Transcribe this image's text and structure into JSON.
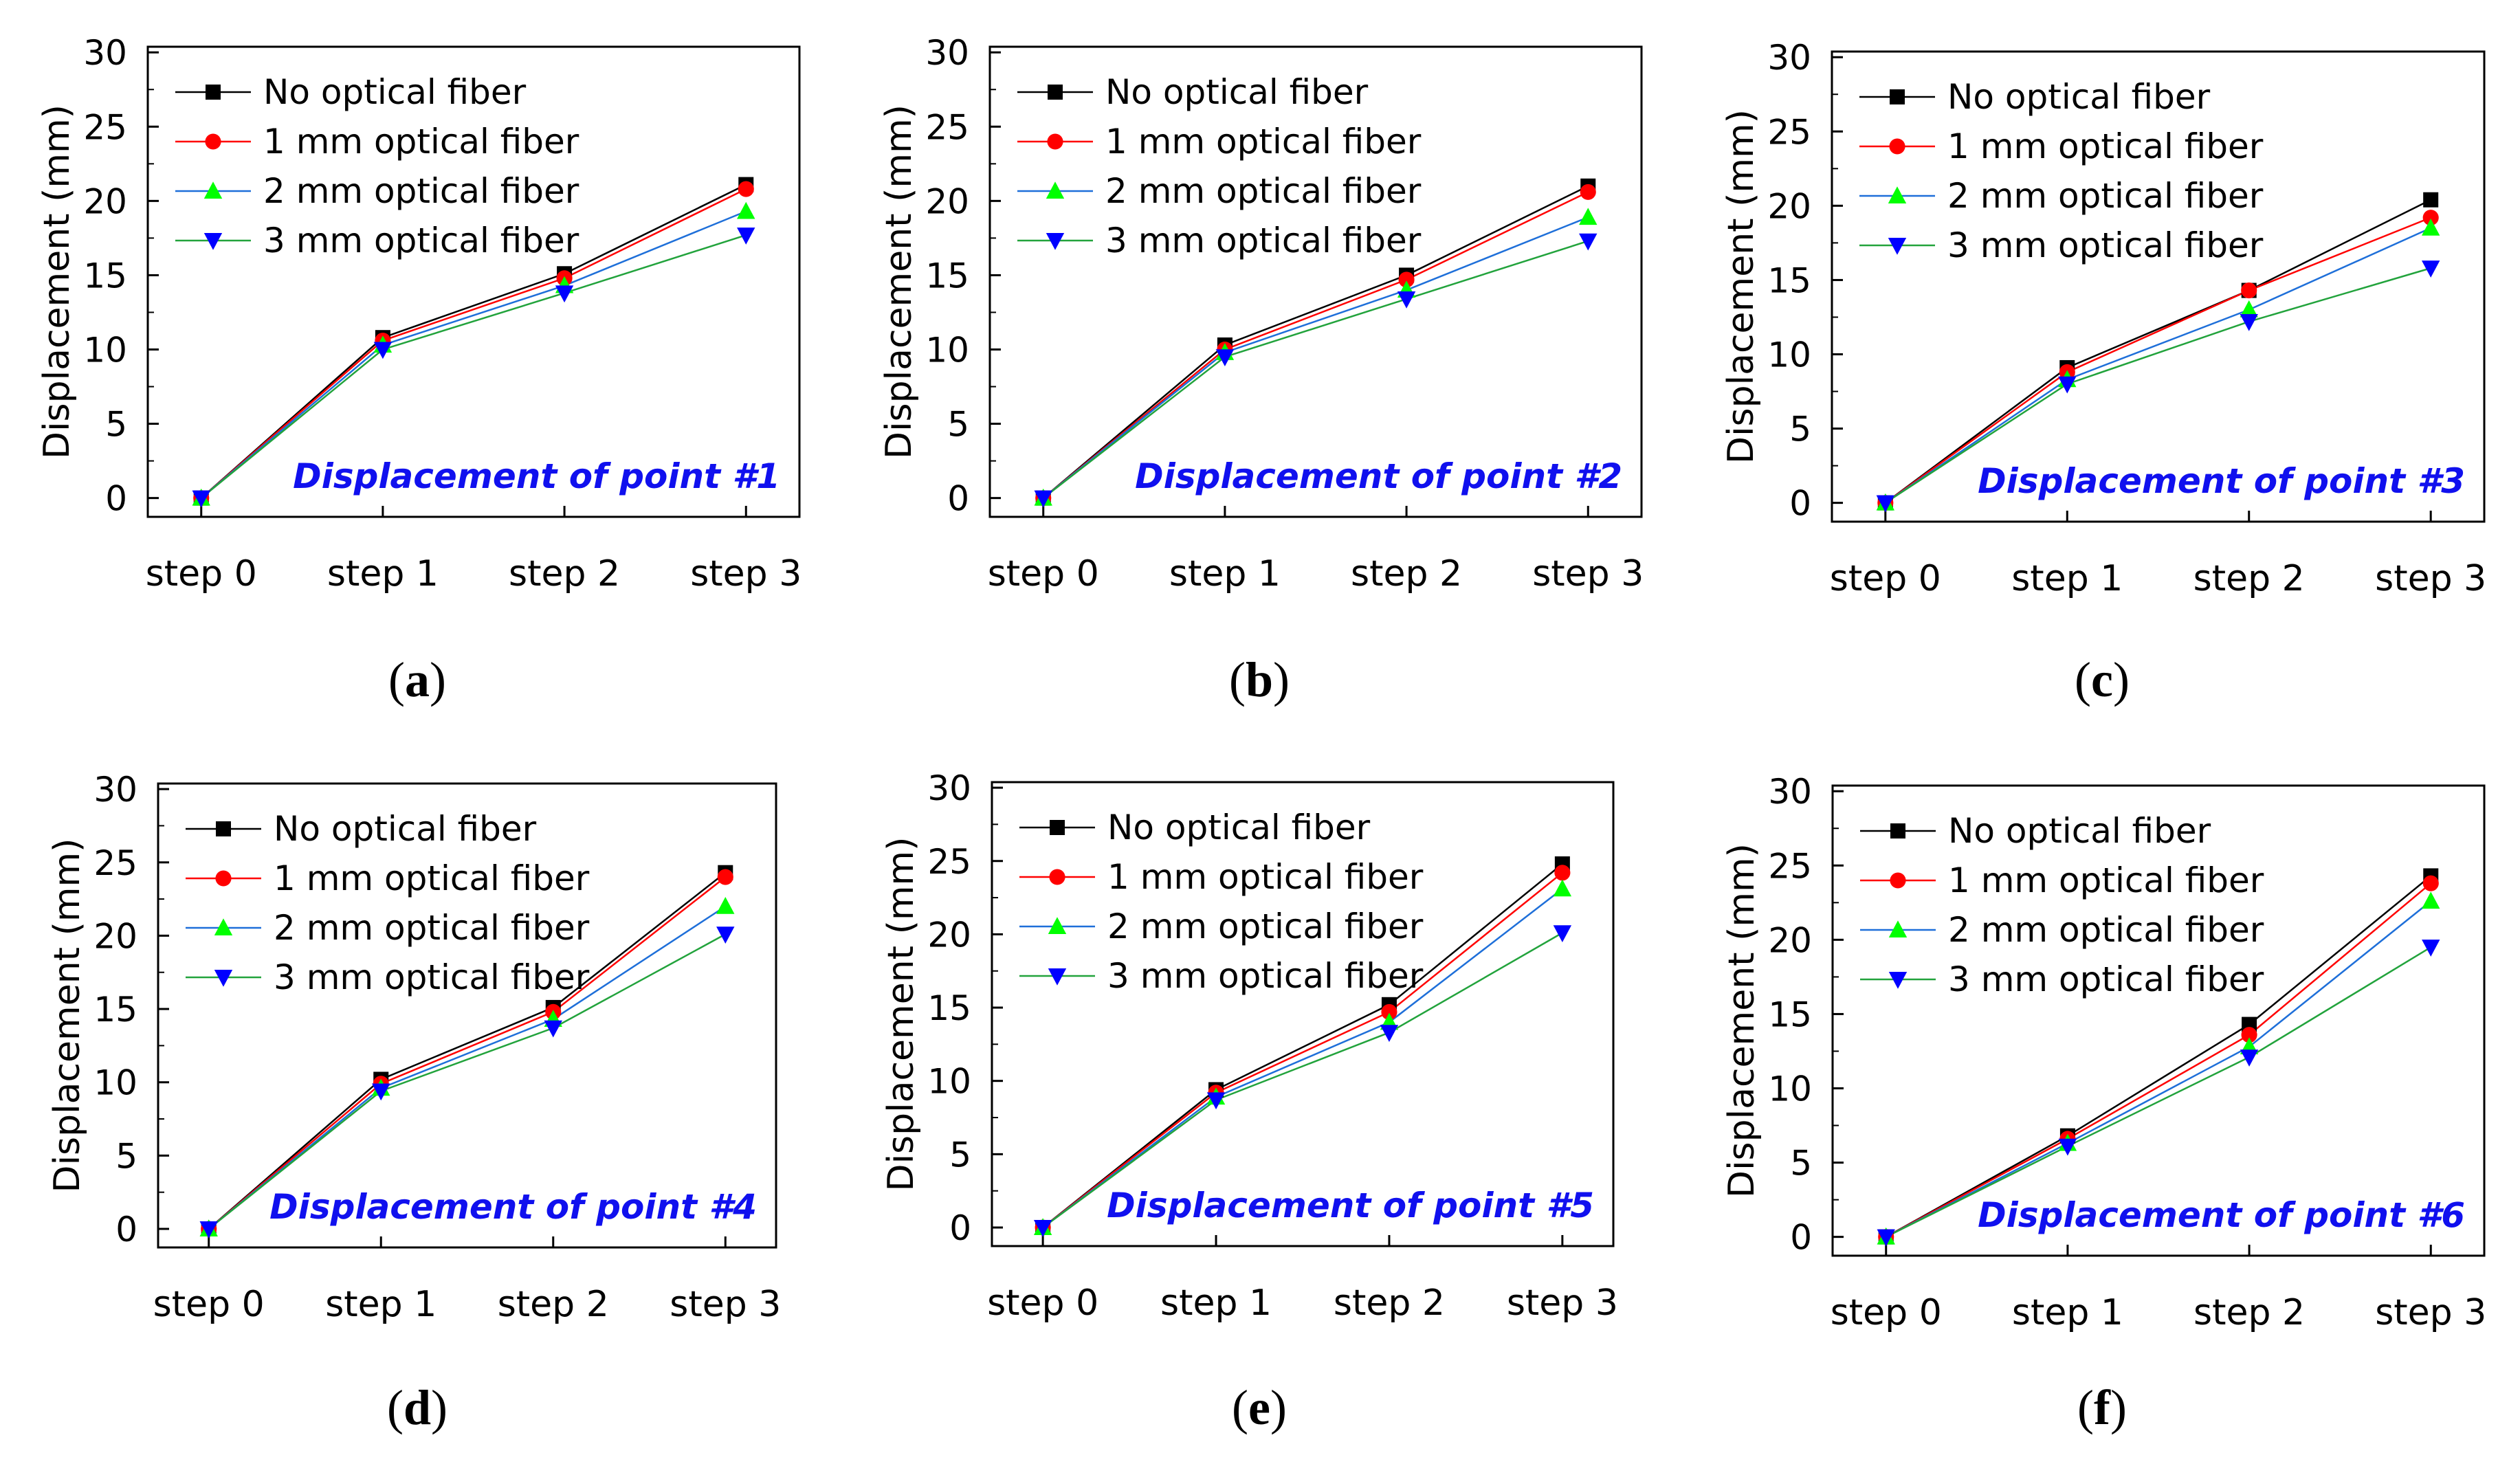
{
  "figure": {
    "panels": [
      {
        "caption": "a",
        "annotation": "Displacement of point #1"
      },
      {
        "caption": "b",
        "annotation": "Displacement of point #2"
      },
      {
        "caption": "c",
        "annotation": "Displacement of point #3"
      },
      {
        "caption": "d",
        "annotation": "Displacement of point #4"
      },
      {
        "caption": "e",
        "annotation": "Displacement of point #5"
      },
      {
        "caption": "f",
        "annotation": "Displacement of point #6"
      }
    ]
  },
  "series_styles": [
    {
      "name": "No optical fiber",
      "color": "#000000",
      "marker": "square"
    },
    {
      "name": "1 mm optical fiber",
      "color": "#ff0000",
      "marker": "circle"
    },
    {
      "name": "2 mm optical fiber",
      "color": "#00ff00",
      "line_color": "#1e6fd9",
      "marker": "triangle-up"
    },
    {
      "name": "3 mm optical fiber",
      "color": "#0000ff",
      "line_color": "#22a33c",
      "marker": "triangle-down"
    }
  ],
  "chart_data": [
    {
      "type": "line",
      "title": "Displacement of point #1",
      "xlabel": "",
      "ylabel": "Displacement (mm)",
      "categories": [
        "step 0",
        "step 1",
        "step 2",
        "step 3"
      ],
      "ylim": [
        0,
        30
      ],
      "yticks": [
        0,
        5,
        10,
        15,
        20,
        25,
        30
      ],
      "legend": "top-left",
      "series": [
        {
          "name": "No optical fiber",
          "values": [
            0,
            10.8,
            15.1,
            21.1
          ]
        },
        {
          "name": "1 mm optical fiber",
          "values": [
            0,
            10.6,
            14.8,
            20.8
          ]
        },
        {
          "name": "2 mm optical fiber",
          "values": [
            0,
            10.3,
            14.3,
            19.3
          ]
        },
        {
          "name": "3 mm optical fiber",
          "values": [
            0,
            10.0,
            13.8,
            17.7
          ]
        }
      ]
    },
    {
      "type": "line",
      "title": "Displacement of point #2",
      "xlabel": "",
      "ylabel": "Displacement (mm)",
      "categories": [
        "step 0",
        "step 1",
        "step 2",
        "step 3"
      ],
      "ylim": [
        0,
        30
      ],
      "yticks": [
        0,
        5,
        10,
        15,
        20,
        25,
        30
      ],
      "legend": "top-left",
      "series": [
        {
          "name": "No optical fiber",
          "values": [
            0,
            10.3,
            15.0,
            21.0
          ]
        },
        {
          "name": "1 mm optical fiber",
          "values": [
            0,
            10.0,
            14.7,
            20.6
          ]
        },
        {
          "name": "2 mm optical fiber",
          "values": [
            0,
            9.8,
            14.0,
            18.9
          ]
        },
        {
          "name": "3 mm optical fiber",
          "values": [
            0,
            9.5,
            13.4,
            17.3
          ]
        }
      ]
    },
    {
      "type": "line",
      "title": "Displacement of point #3",
      "xlabel": "",
      "ylabel": "Displacement (mm)",
      "categories": [
        "step 0",
        "step 1",
        "step 2",
        "step 3"
      ],
      "ylim": [
        0,
        30
      ],
      "yticks": [
        0,
        5,
        10,
        15,
        20,
        25,
        30
      ],
      "legend": "top-left",
      "series": [
        {
          "name": "No optical fiber",
          "values": [
            0,
            9.1,
            14.3,
            20.4
          ]
        },
        {
          "name": "1 mm optical fiber",
          "values": [
            0,
            8.8,
            14.3,
            19.2
          ]
        },
        {
          "name": "2 mm optical fiber",
          "values": [
            0,
            8.3,
            13.0,
            18.5
          ]
        },
        {
          "name": "3 mm optical fiber",
          "values": [
            0,
            8.0,
            12.2,
            15.8
          ]
        }
      ]
    },
    {
      "type": "line",
      "title": "Displacement of point #4",
      "xlabel": "",
      "ylabel": "Displacement (mm)",
      "categories": [
        "step 0",
        "step 1",
        "step 2",
        "step 3"
      ],
      "ylim": [
        0,
        30
      ],
      "yticks": [
        0,
        5,
        10,
        15,
        20,
        25,
        30
      ],
      "legend": "top-left",
      "series": [
        {
          "name": "No optical fiber",
          "values": [
            0,
            10.2,
            15.1,
            24.3
          ]
        },
        {
          "name": "1 mm optical fiber",
          "values": [
            0,
            9.9,
            14.8,
            24.0
          ]
        },
        {
          "name": "2 mm optical fiber",
          "values": [
            0,
            9.6,
            14.3,
            22.0
          ]
        },
        {
          "name": "3 mm optical fiber",
          "values": [
            0,
            9.4,
            13.7,
            20.1
          ]
        }
      ]
    },
    {
      "type": "line",
      "title": "Displacement of point #5",
      "xlabel": "",
      "ylabel": "Displacement (mm)",
      "categories": [
        "step 0",
        "step 1",
        "step 2",
        "step 3"
      ],
      "ylim": [
        0,
        30
      ],
      "yticks": [
        0,
        5,
        10,
        15,
        20,
        25,
        30
      ],
      "legend": "top-left",
      "series": [
        {
          "name": "No optical fiber",
          "values": [
            0,
            9.4,
            15.2,
            24.8
          ]
        },
        {
          "name": "1 mm optical fiber",
          "values": [
            0,
            9.2,
            14.7,
            24.2
          ]
        },
        {
          "name": "2 mm optical fiber",
          "values": [
            0,
            8.9,
            14.0,
            23.1
          ]
        },
        {
          "name": "3 mm optical fiber",
          "values": [
            0,
            8.7,
            13.3,
            20.1
          ]
        }
      ]
    },
    {
      "type": "line",
      "title": "Displacement of point #6",
      "xlabel": "",
      "ylabel": "Displacement (mm)",
      "categories": [
        "step 0",
        "step 1",
        "step 2",
        "step 3"
      ],
      "ylim": [
        0,
        30
      ],
      "yticks": [
        0,
        5,
        10,
        15,
        20,
        25,
        30
      ],
      "legend": "top-left",
      "series": [
        {
          "name": "No optical fiber",
          "values": [
            0,
            6.8,
            14.3,
            24.3
          ]
        },
        {
          "name": "1 mm optical fiber",
          "values": [
            0,
            6.6,
            13.6,
            23.8
          ]
        },
        {
          "name": "2 mm optical fiber",
          "values": [
            0,
            6.3,
            12.8,
            22.6
          ]
        },
        {
          "name": "3 mm optical fiber",
          "values": [
            0,
            6.1,
            12.1,
            19.5
          ]
        }
      ]
    }
  ]
}
